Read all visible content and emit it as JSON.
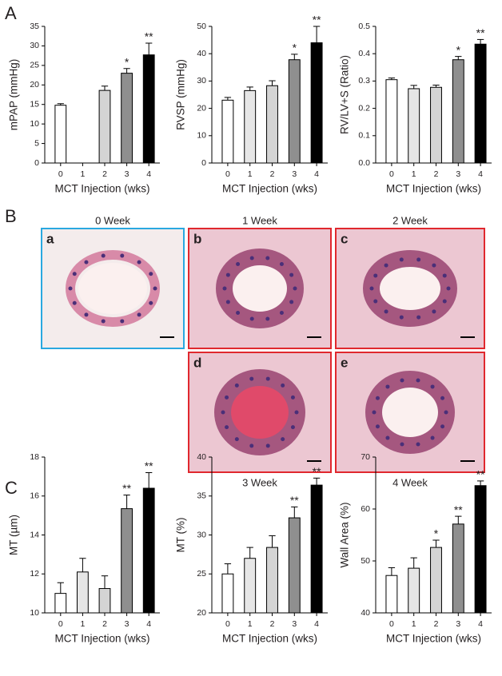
{
  "panels": [
    "A",
    "B",
    "C"
  ],
  "images": [
    {
      "title": "0 Week",
      "letter": "a"
    },
    {
      "title": "1 Week",
      "letter": "b"
    },
    {
      "title": "2 Week",
      "letter": "c"
    },
    {
      "title": "3 Week",
      "letter": "d"
    },
    {
      "title": "4 Week",
      "letter": "e"
    }
  ],
  "chart_data": [
    {
      "type": "bar",
      "y_label": "mPAP (mmHg)",
      "x_label": "MCT Injection (wks)",
      "categories": [
        "0",
        "1",
        "2",
        "3",
        "4"
      ],
      "values": [
        14.8,
        null,
        18.6,
        23,
        27.7
      ],
      "errors": [
        0.4,
        null,
        1.1,
        1.2,
        3
      ],
      "significance": [
        null,
        null,
        null,
        "*",
        "**"
      ],
      "colors": [
        "#ffffff",
        "#e6e6e6",
        "#d4d4d4",
        "#8f8f8f",
        "#000000"
      ],
      "ylim": [
        0,
        35
      ],
      "yticks": [
        0,
        5,
        10,
        15,
        20,
        25,
        30,
        35
      ]
    },
    {
      "type": "bar",
      "y_label": "RVSP (mmHg)",
      "x_label": "MCT Injection (wks)",
      "categories": [
        "0",
        "1",
        "2",
        "3",
        "4"
      ],
      "values": [
        23,
        26.5,
        28.3,
        37.8,
        44
      ],
      "errors": [
        1,
        1.3,
        1.8,
        2,
        6
      ],
      "significance": [
        null,
        null,
        null,
        "*",
        "**"
      ],
      "colors": [
        "#ffffff",
        "#e6e6e6",
        "#d4d4d4",
        "#8f8f8f",
        "#000000"
      ],
      "ylim": [
        0,
        50
      ],
      "yticks": [
        0,
        10,
        20,
        30,
        40,
        50
      ]
    },
    {
      "type": "bar",
      "y_label": "RV/LV+S (Ratio)",
      "x_label": "MCT Injection (wks)",
      "categories": [
        "0",
        "1",
        "2",
        "3",
        "4"
      ],
      "values": [
        0.305,
        0.272,
        0.277,
        0.378,
        0.435
      ],
      "errors": [
        0.006,
        0.012,
        0.008,
        0.012,
        0.017
      ],
      "significance": [
        null,
        null,
        null,
        "*",
        "**"
      ],
      "colors": [
        "#ffffff",
        "#e6e6e6",
        "#d4d4d4",
        "#8f8f8f",
        "#000000"
      ],
      "ylim": [
        0,
        0.5
      ],
      "yticks": [
        {
          "value": 0,
          "label": "0.0"
        },
        0.1,
        0.2,
        0.3,
        0.4,
        0.5
      ]
    },
    {
      "type": "bar",
      "y_label": "MT (µm)",
      "x_label": "MCT Injection (wks)",
      "categories": [
        "0",
        "1",
        "2",
        "3",
        "4"
      ],
      "values": [
        11,
        12.1,
        11.25,
        15.35,
        16.4
      ],
      "errors": [
        0.55,
        0.7,
        0.65,
        0.7,
        0.8
      ],
      "significance": [
        null,
        null,
        null,
        "**",
        "**"
      ],
      "colors": [
        "#ffffff",
        "#e6e6e6",
        "#d4d4d4",
        "#8f8f8f",
        "#000000"
      ],
      "ylim": [
        10,
        18
      ],
      "yticks": [
        10,
        12,
        14,
        16,
        18
      ]
    },
    {
      "type": "bar",
      "y_label": "MT (%)",
      "x_label": "MCT Injection (wks)",
      "categories": [
        "0",
        "1",
        "2",
        "3",
        "4"
      ],
      "values": [
        25,
        27,
        28.4,
        32.2,
        36.4
      ],
      "errors": [
        1.3,
        1.4,
        1.5,
        1.4,
        0.9
      ],
      "significance": [
        null,
        null,
        null,
        "**",
        "**"
      ],
      "colors": [
        "#ffffff",
        "#e6e6e6",
        "#d4d4d4",
        "#8f8f8f",
        "#000000"
      ],
      "ylim": [
        20,
        40
      ],
      "yticks": [
        20,
        25,
        30,
        35,
        40
      ]
    },
    {
      "type": "bar",
      "y_label": "Wall Area (%)",
      "x_label": "MCT Injection (wks)",
      "categories": [
        "0",
        "1",
        "2",
        "3",
        "4"
      ],
      "values": [
        47.2,
        48.6,
        52.6,
        57.1,
        64.5
      ],
      "errors": [
        1.5,
        2,
        1.4,
        1.5,
        0.9
      ],
      "significance": [
        null,
        null,
        "*",
        "**",
        "**"
      ],
      "colors": [
        "#ffffff",
        "#e6e6e6",
        "#d4d4d4",
        "#8f8f8f",
        "#000000"
      ],
      "ylim": [
        40,
        70
      ],
      "yticks": [
        40,
        50,
        60,
        70
      ]
    }
  ]
}
